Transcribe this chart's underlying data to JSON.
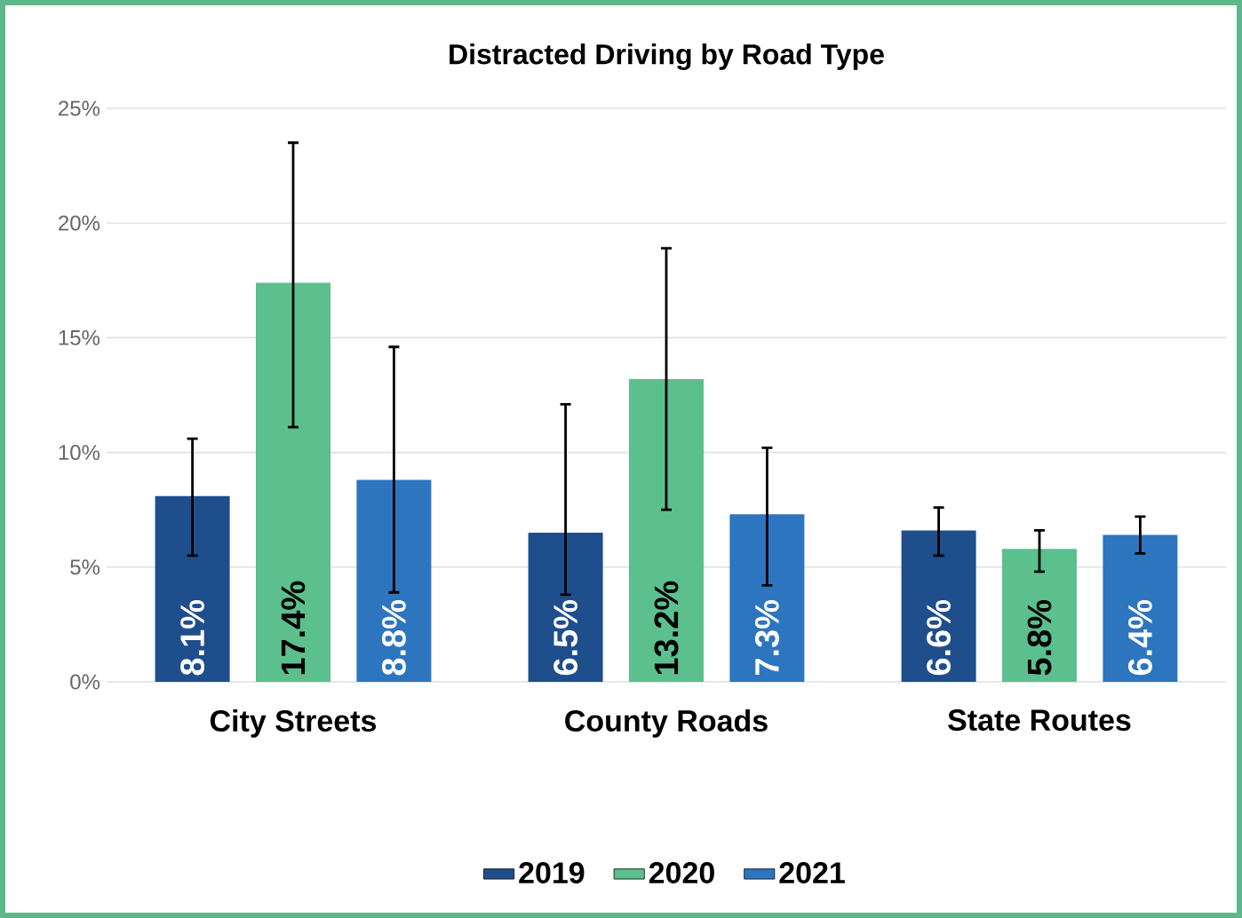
{
  "chart_data": {
    "type": "bar",
    "title": "Distracted Driving by Road Type",
    "categories": [
      "City Streets",
      "County Roads",
      "State Routes"
    ],
    "series": [
      {
        "name": "2019",
        "color": "#1f4e8c",
        "values": [
          8.1,
          6.5,
          6.6
        ],
        "value_labels": [
          "8.1%",
          "6.5%",
          "6.6%"
        ],
        "errors": [
          [
            5.5,
            10.6
          ],
          [
            3.8,
            12.1
          ],
          [
            5.5,
            7.6
          ]
        ]
      },
      {
        "name": "2020",
        "color": "#5bbf8e",
        "values": [
          17.4,
          13.2,
          5.8
        ],
        "value_labels": [
          "17.4%",
          "13.2%",
          "5.8%"
        ],
        "errors": [
          [
            11.1,
            23.5
          ],
          [
            7.5,
            18.9
          ],
          [
            4.8,
            6.6
          ]
        ]
      },
      {
        "name": "2021",
        "color": "#2e75c0",
        "values": [
          8.8,
          7.3,
          6.4
        ],
        "value_labels": [
          "8.8%",
          "7.3%",
          "6.4%"
        ],
        "errors": [
          [
            3.9,
            14.6
          ],
          [
            4.2,
            10.2
          ],
          [
            5.6,
            7.2
          ]
        ]
      }
    ],
    "ylim": [
      0,
      25
    ],
    "yticks": [
      {
        "value": 0,
        "label": "0%"
      },
      {
        "value": 5,
        "label": "5%"
      },
      {
        "value": 10,
        "label": "10%"
      },
      {
        "value": 15,
        "label": "15%"
      },
      {
        "value": 20,
        "label": "20%"
      },
      {
        "value": 25,
        "label": "25%"
      }
    ],
    "grid": "y",
    "legend": "bottom"
  }
}
